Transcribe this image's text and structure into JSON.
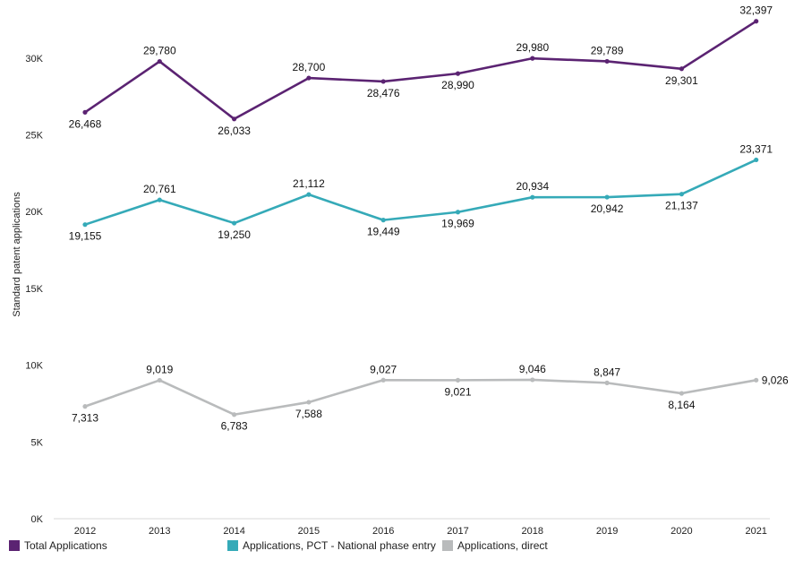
{
  "chart_data": {
    "type": "line",
    "title": "",
    "xlabel": "",
    "ylabel": "Standard patent applications",
    "ylim": [
      0,
      33000
    ],
    "y_ticks": [
      0,
      5000,
      10000,
      15000,
      20000,
      25000,
      30000
    ],
    "y_tick_labels": [
      "0K",
      "5K",
      "10K",
      "15K",
      "20K",
      "25K",
      "30K"
    ],
    "grid": false,
    "legend_position": "bottom-left",
    "categories": [
      "2012",
      "2013",
      "2014",
      "2015",
      "2016",
      "2017",
      "2018",
      "2019",
      "2020",
      "2021"
    ],
    "series": [
      {
        "name": "Total Applications",
        "color": "#5b2372",
        "values": [
          26468,
          29780,
          26033,
          28700,
          28476,
          28990,
          29980,
          29789,
          29301,
          32397
        ],
        "labels": [
          "26,468",
          "29,780",
          "26,033",
          "28,700",
          "28,476",
          "28,990",
          "29,980",
          "29,789",
          "29,301",
          "32,397"
        ],
        "label_pos": [
          "below",
          "above",
          "below",
          "above",
          "below",
          "below",
          "above",
          "above",
          "below",
          "above"
        ]
      },
      {
        "name": "Applications, PCT - National phase entry",
        "color": "#35aab8",
        "values": [
          19155,
          20761,
          19250,
          21112,
          19449,
          19969,
          20934,
          20942,
          21137,
          23371
        ],
        "labels": [
          "19,155",
          "20,761",
          "19,250",
          "21,112",
          "19,449",
          "19,969",
          "20,934",
          "20,942",
          "21,137",
          "23,371"
        ],
        "label_pos": [
          "below",
          "above",
          "below",
          "above",
          "below",
          "below",
          "above",
          "below",
          "below",
          "above"
        ]
      },
      {
        "name": "Applications, direct",
        "color": "#b9bbbc",
        "values": [
          7313,
          9019,
          6783,
          7588,
          9027,
          9021,
          9046,
          8847,
          8164,
          9026
        ],
        "labels": [
          "7,313",
          "9,019",
          "6,783",
          "7,588",
          "9,027",
          "9,021",
          "9,046",
          "8,847",
          "8,164",
          "9,026"
        ],
        "label_pos": [
          "below",
          "above",
          "below",
          "below",
          "above",
          "below",
          "above",
          "above",
          "below",
          "right"
        ]
      }
    ]
  }
}
